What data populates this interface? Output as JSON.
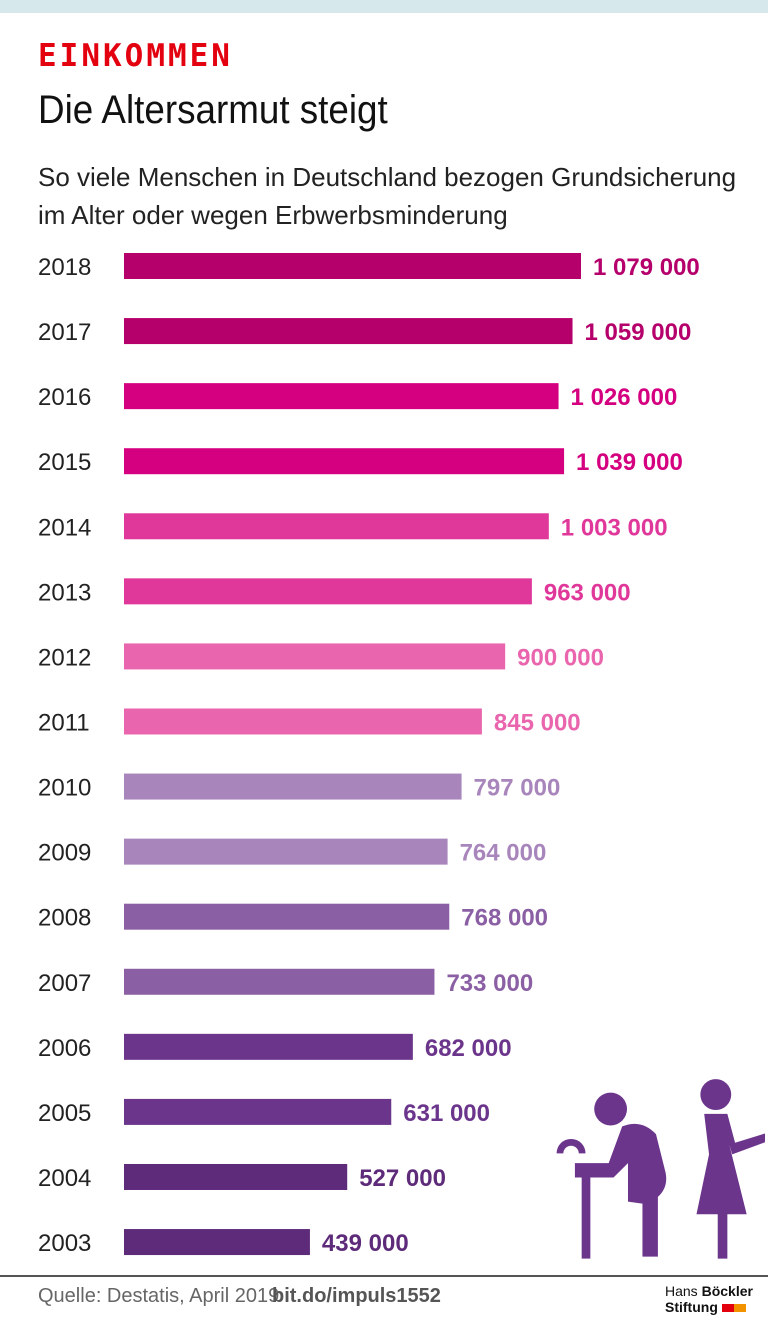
{
  "header": {
    "kicker": "EINKOMMEN",
    "title": "Die Altersarmut steigt",
    "subtitle": "So viele Menschen in Deutschland bezogen Grund­sicherung im Alter oder wegen Erbwerbsminderung"
  },
  "chart_data": {
    "type": "bar",
    "orientation": "horizontal",
    "categories": [
      "2018",
      "2017",
      "2016",
      "2015",
      "2014",
      "2013",
      "2012",
      "2011",
      "2010",
      "2009",
      "2008",
      "2007",
      "2006",
      "2005",
      "2004",
      "2003"
    ],
    "values": [
      1079000,
      1059000,
      1026000,
      1039000,
      1003000,
      963000,
      900000,
      845000,
      797000,
      764000,
      768000,
      733000,
      682000,
      631000,
      527000,
      439000
    ],
    "labels": [
      "1 079 000",
      "1 059 000",
      "1 026 000",
      "1 039 000",
      "1 003 000",
      "963 000",
      "900 000",
      "845 000",
      "797 000",
      "764 000",
      "768 000",
      "733 000",
      "682 000",
      "631 000",
      "527 000",
      "439 000"
    ],
    "colors": [
      "#b5006c",
      "#b5006c",
      "#d5007f",
      "#d5007f",
      "#e0379a",
      "#e0379a",
      "#e965ae",
      "#e965ae",
      "#a886bc",
      "#a886bc",
      "#8b5fa4",
      "#8b5fa4",
      "#6c358c",
      "#6c358c",
      "#5e2b7a",
      "#5e2b7a"
    ],
    "grid": false
  },
  "illustration": {
    "icon": "elderly-people-icon",
    "color": "#6c358c"
  },
  "footer": {
    "source": "Quelle: Destatis, April 2019",
    "link": "bit.do/impuls1552",
    "logo_line1a": "Hans",
    "logo_line1b": "Böckler",
    "logo_line2": "Stiftung",
    "logo_colors": [
      "#e3000f",
      "#f39200"
    ]
  }
}
